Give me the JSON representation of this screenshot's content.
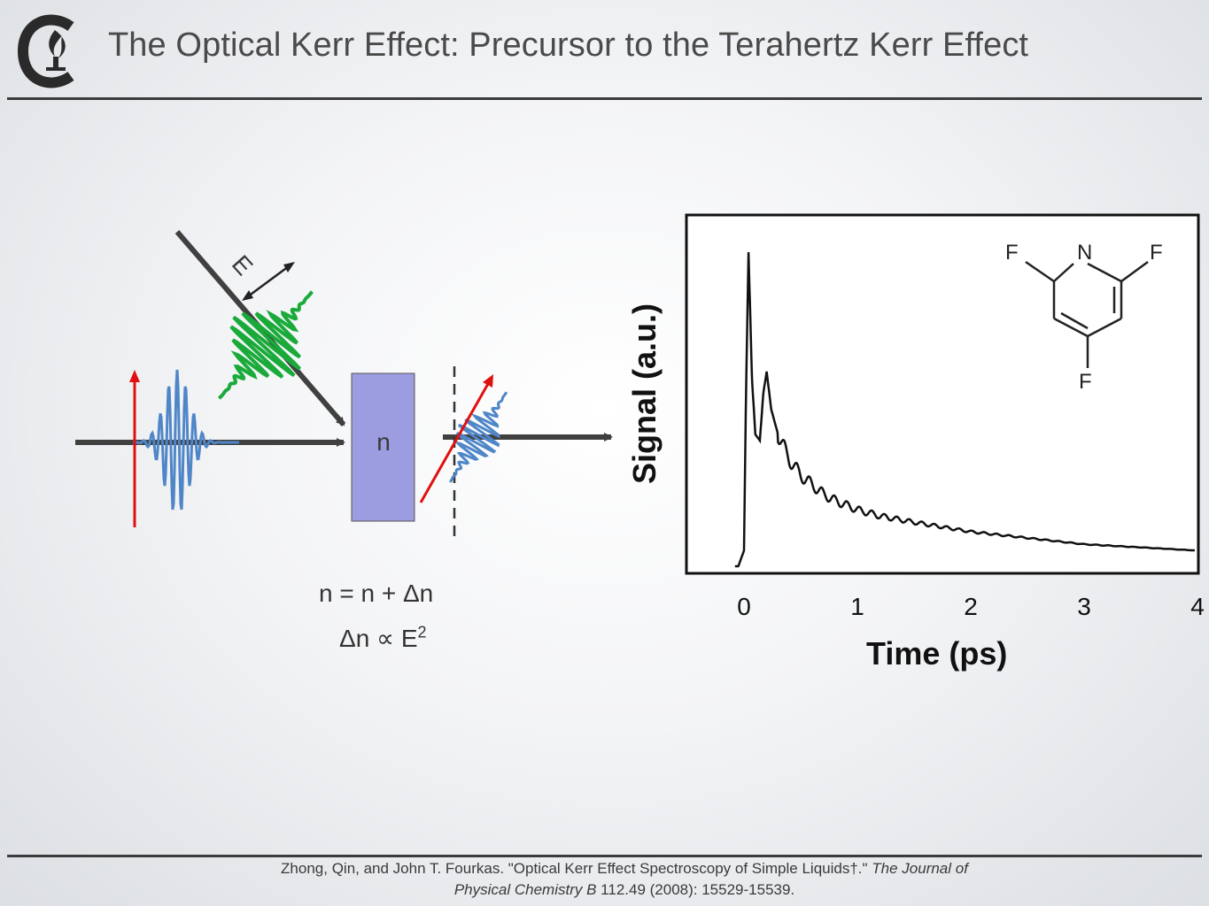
{
  "header": {
    "title": "The Optical Kerr Effect: Precursor to the Terahertz Kerr Effect",
    "logo_icon": "university-flame-logo-icon"
  },
  "diagram": {
    "sample_label": "n",
    "field_label": "E",
    "equation_1": "n = n + Δn",
    "equation_2_base": "Δn ∝ E",
    "equation_2_exponent": "2",
    "colors": {
      "beam": "#404040",
      "probe_wave": "#4f86c8",
      "pump_wave": "#1aaa3a",
      "polarization": "#e01010",
      "sample": "#9c9ce0"
    }
  },
  "chart_data": {
    "type": "line",
    "xlabel": "Time (ps)",
    "ylabel": "Signal (a.u.)",
    "xticks": [
      "0",
      "1",
      "2",
      "3",
      "4"
    ],
    "xlim": [
      -0.5,
      4.0
    ],
    "series": [
      {
        "values_description_free": true,
        "x": [
          -0.05,
          0.0,
          0.02,
          0.04,
          0.07,
          0.1,
          0.14,
          0.17,
          0.2,
          0.24,
          0.3,
          0.4,
          0.5,
          0.6,
          0.7,
          0.8,
          1.0,
          1.2,
          1.5,
          2.0,
          2.5,
          3.0,
          3.5,
          4.0
        ],
        "y": [
          0.0,
          0.05,
          0.6,
          1.0,
          0.6,
          0.42,
          0.4,
          0.55,
          0.62,
          0.5,
          0.42,
          0.34,
          0.29,
          0.26,
          0.23,
          0.21,
          0.18,
          0.16,
          0.14,
          0.11,
          0.09,
          0.07,
          0.06,
          0.05
        ]
      }
    ],
    "molecule_atoms": [
      "F",
      "N",
      "F",
      "F"
    ]
  },
  "footer": {
    "citation_line1_plain": "Zhong, Qin, and John T. Fourkas. \"Optical Kerr Effect Spectroscopy of Simple Liquids†.\" ",
    "citation_line1_italic": "The Journal of",
    "citation_line2_italic": "Physical Chemistry B",
    "citation_line2_plain": " 112.49 (2008): 15529-15539."
  }
}
